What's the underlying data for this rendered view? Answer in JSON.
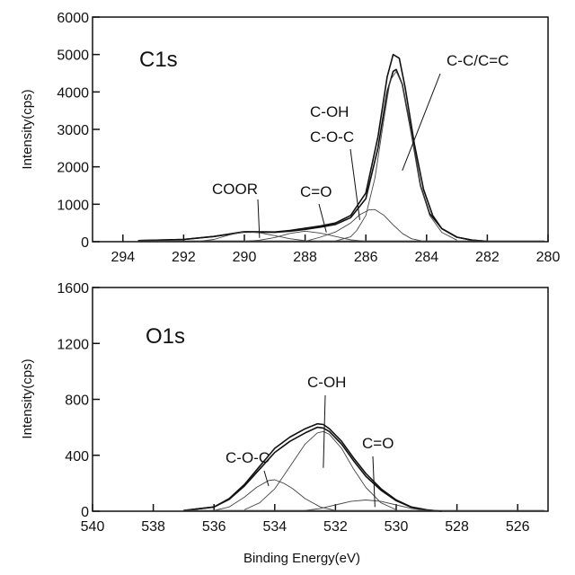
{
  "chart_data": [
    {
      "type": "line",
      "panel_label": "C1s",
      "ylabel": "Intensity(cps)",
      "xlabel": "",
      "xlim": [
        295,
        280
      ],
      "x_reversed": true,
      "ylim": [
        0,
        6000
      ],
      "x_ticks": [
        294,
        292,
        290,
        288,
        286,
        284,
        282,
        280
      ],
      "y_ticks": [
        0,
        1000,
        2000,
        3000,
        4000,
        5000,
        6000
      ],
      "series": [
        {
          "role": "envelope",
          "x": [
            293.5,
            292,
            291,
            290,
            289,
            288.5,
            288,
            287.5,
            287,
            286.5,
            286,
            285.6,
            285.3,
            285.1,
            284.9,
            284.7,
            284.4,
            284.1,
            283.8,
            283.5,
            283,
            282.5,
            282
          ],
          "y": [
            30,
            60,
            140,
            270,
            260,
            300,
            360,
            420,
            500,
            700,
            1300,
            2800,
            4400,
            5000,
            4900,
            4100,
            2600,
            1400,
            700,
            350,
            120,
            40,
            10
          ]
        },
        {
          "role": "fitted",
          "x": [
            293.5,
            292,
            291,
            290,
            289,
            288.5,
            288,
            287.5,
            287,
            286.5,
            286,
            285.6,
            285.3,
            285.1,
            285.0,
            284.8,
            284.5,
            284.2,
            283.9,
            283.5,
            283,
            282.5,
            282
          ],
          "y": [
            30,
            60,
            140,
            260,
            250,
            280,
            330,
            390,
            460,
            640,
            1150,
            2500,
            4000,
            4550,
            4600,
            4200,
            2900,
            1500,
            750,
            350,
            120,
            40,
            10
          ]
        },
        {
          "role": "component",
          "x": [
            291.5,
            291,
            290.5,
            290,
            289.5,
            289,
            288.5,
            288,
            287.5
          ],
          "y": [
            10,
            60,
            180,
            270,
            240,
            160,
            80,
            30,
            10
          ]
        },
        {
          "role": "component",
          "x": [
            290,
            289.5,
            289,
            288.5,
            288,
            287.5,
            287,
            286.5,
            286
          ],
          "y": [
            10,
            40,
            110,
            220,
            280,
            230,
            140,
            50,
            10
          ]
        },
        {
          "role": "component",
          "x": [
            288,
            287.5,
            287,
            286.5,
            286.2,
            285.9,
            285.7,
            285.4,
            285.1,
            284.8,
            284.5,
            284.1
          ],
          "y": [
            10,
            120,
            260,
            500,
            720,
            850,
            860,
            700,
            450,
            220,
            80,
            10
          ]
        },
        {
          "role": "component",
          "x": [
            287,
            286.5,
            286.3,
            286,
            285.7,
            285.4,
            285.2,
            285.0,
            284.8,
            284.5,
            284.2,
            283.9,
            283.5,
            283
          ],
          "y": [
            20,
            130,
            300,
            700,
            1700,
            3300,
            4300,
            4550,
            4200,
            2900,
            1500,
            700,
            250,
            40
          ]
        }
      ],
      "annotations": [
        {
          "text": "C-C/C=C",
          "target": [
            284.8,
            1900
          ]
        },
        {
          "text": "C-OH",
          "target": [
            286.2,
            580
          ]
        },
        {
          "text": "C-O-C",
          "target": [
            286.2,
            580
          ]
        },
        {
          "text": "C=O",
          "target": [
            287.3,
            250
          ]
        },
        {
          "text": "COOR",
          "target": [
            289.5,
            100
          ]
        }
      ]
    },
    {
      "type": "line",
      "panel_label": "O1s",
      "ylabel": "Intensity(cps)",
      "xlabel": "Binding Energy(eV)",
      "xlim": [
        540,
        525
      ],
      "x_reversed": true,
      "ylim": [
        0,
        1600
      ],
      "x_ticks": [
        540,
        538,
        536,
        534,
        532,
        530,
        528,
        526
      ],
      "y_ticks": [
        0,
        400,
        800,
        1200,
        1600
      ],
      "series": [
        {
          "role": "envelope",
          "x": [
            537,
            536,
            535.5,
            535,
            534.5,
            534,
            533.5,
            533,
            532.6,
            532.4,
            532.2,
            531.8,
            531.4,
            531,
            530.5,
            530,
            529.5,
            529,
            528.5
          ],
          "y": [
            5,
            30,
            90,
            190,
            320,
            450,
            530,
            590,
            625,
            620,
            590,
            500,
            380,
            270,
            160,
            80,
            30,
            10,
            0
          ]
        },
        {
          "role": "fitted",
          "x": [
            537,
            536,
            535.5,
            535,
            534.5,
            534,
            533.5,
            533,
            532.6,
            532.4,
            532.2,
            531.8,
            531.4,
            531,
            530.5,
            530,
            529.5,
            529,
            528.5
          ],
          "y": [
            5,
            30,
            85,
            180,
            300,
            420,
            500,
            560,
            600,
            595,
            570,
            480,
            360,
            250,
            150,
            75,
            28,
            8,
            0
          ]
        },
        {
          "role": "component",
          "x": [
            536,
            535.5,
            535,
            534.6,
            534.2,
            534,
            533.7,
            533.4,
            533,
            532.5,
            532
          ],
          "y": [
            5,
            30,
            100,
            170,
            220,
            225,
            200,
            160,
            90,
            30,
            5
          ]
        },
        {
          "role": "component",
          "x": [
            535,
            534.5,
            534,
            533.5,
            533,
            532.6,
            532.4,
            532.2,
            531.8,
            531.4,
            531,
            530.5,
            530
          ],
          "y": [
            10,
            60,
            160,
            320,
            480,
            560,
            570,
            550,
            450,
            300,
            170,
            60,
            10
          ]
        },
        {
          "role": "component",
          "x": [
            533,
            532.5,
            532,
            531.5,
            531,
            530.5,
            530,
            529.5,
            529
          ],
          "y": [
            5,
            20,
            45,
            70,
            80,
            70,
            45,
            20,
            5
          ]
        }
      ],
      "annotations": [
        {
          "text": "C-OH",
          "target": [
            532.4,
            310
          ]
        },
        {
          "text": "C-O-C",
          "target": [
            534.2,
            180
          ]
        },
        {
          "text": "C=O",
          "target": [
            530.7,
            30
          ]
        }
      ]
    }
  ]
}
